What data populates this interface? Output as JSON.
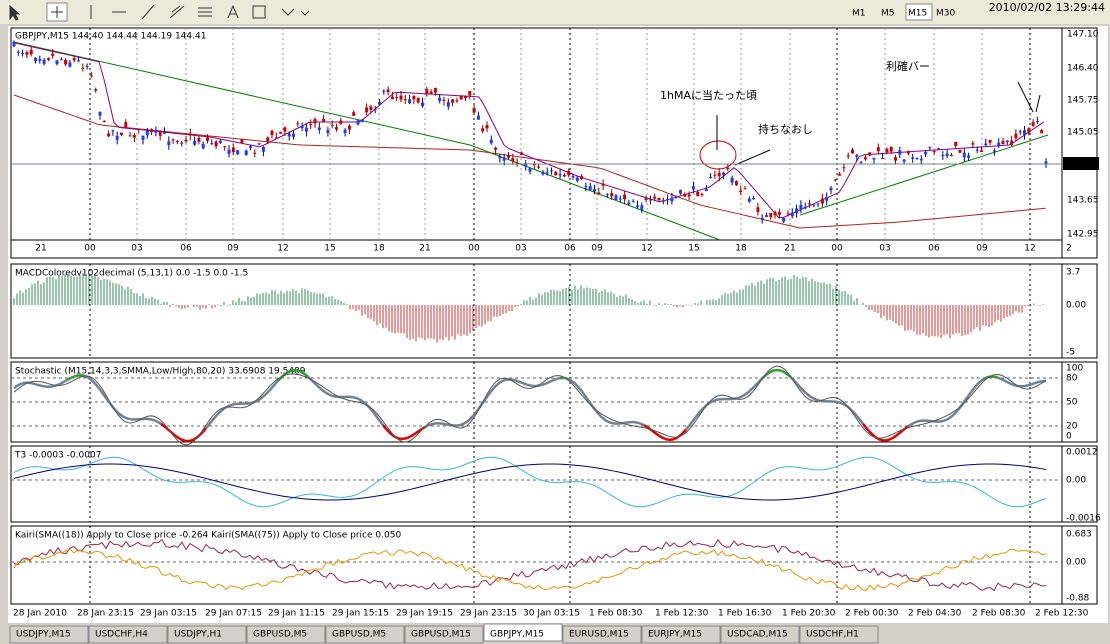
{
  "toolbar": {
    "timeframes": [
      "M1",
      "M5",
      "M15",
      "M30"
    ],
    "clock": "2010/02/02 13:29:44"
  },
  "main": {
    "label": "GBPJPY,M15  144.40 144.44 144.19 144.41",
    "price_axis": [
      "147.10",
      "146.40",
      "145.75",
      "145.05",
      "143.65",
      "142.95"
    ],
    "current_price": "144.41",
    "hour_labels": [
      "21",
      "00",
      "03",
      "06",
      "09",
      "12",
      "15",
      "18",
      "21",
      "00",
      "03",
      "06",
      "09",
      "12",
      "15",
      "18",
      "21",
      "00",
      "03",
      "06",
      "09",
      "12"
    ],
    "hour_edge": "2",
    "annotations": [
      "1hMAに当たった頃",
      "持ちなおし",
      "利確バー"
    ]
  },
  "panels": [
    {
      "label": "MACDColoredv102decimal (5,13,1) 0.0 -1.5 0.0 -1.5",
      "axis": [
        "3.7",
        "0.00",
        "-5"
      ]
    },
    {
      "label": "Stochastic (M15,14,3,3,SMMA,Low/High,80,20) 33.6908 19.5489",
      "axis": [
        "100",
        "80",
        "50",
        "20",
        "0"
      ]
    },
    {
      "label": "T3 -0.0003 -0.0007",
      "axis": [
        "0.0012",
        "0.00",
        "-0.0016"
      ]
    },
    {
      "label": "Kairi(SMA((18)) Apply to Close price -0.264  Kairi(SMA((75)) Apply to Close price 0.050",
      "axis": [
        "0.683",
        "0.00",
        "-0.88"
      ]
    }
  ],
  "date_labels": [
    "28 Jan 2010",
    "28 Jan 23:15",
    "29 Jan 03:15",
    "29 Jan 07:15",
    "29 Jan 11:15",
    "29 Jan 15:15",
    "29 Jan 19:15",
    "29 Jan 23:15",
    "30 Jan 03:15",
    "1 Feb 08:30",
    "1 Feb 12:30",
    "1 Feb 16:30",
    "1 Feb 20:30",
    "2 Feb 00:30",
    "2 Feb 04:30",
    "2 Feb 08:30",
    "2 Feb 12:30"
  ],
  "tabs": [
    "USDJPY,M15",
    "USDCHF,H4",
    "USDJPY,H1",
    "GBPUSD,M5",
    "GBPUSD,M5",
    "GBPUSD,M15",
    "GBPJPY,M15",
    "EURUSD,M15",
    "EURJPY,M15",
    "USDCAD,M15",
    "USDCHF,H1"
  ]
}
